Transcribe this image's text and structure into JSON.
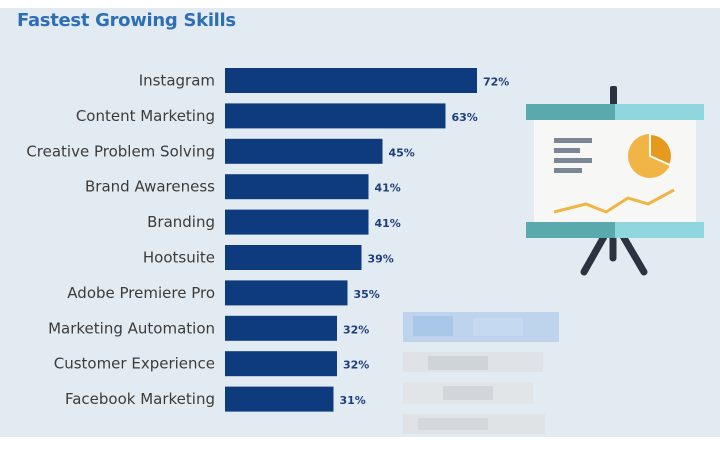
{
  "title": "Fastest Growing Skills",
  "colors": {
    "bar": "#0d3b7e",
    "panel_bg": "#e3ebf2",
    "title": "#2e6eb5",
    "value_label": "#1e3f7d"
  },
  "icons": [
    "presentation-easel-icon",
    "blurred-watermark"
  ],
  "chart_data": {
    "type": "bar",
    "orientation": "horizontal",
    "title": "Fastest Growing Skills",
    "xlabel": "",
    "ylabel": "",
    "unit": "%",
    "grid": false,
    "legend": "none",
    "xlim": [
      0,
      100
    ],
    "categories": [
      "Instagram",
      "Content Marketing",
      "Creative Problem Solving",
      "Brand Awareness",
      "Branding",
      "Hootsuite",
      "Adobe Premiere Pro",
      "Marketing Automation",
      "Customer Experience",
      "Facebook Marketing"
    ],
    "values": [
      72,
      63,
      45,
      41,
      41,
      39,
      35,
      32,
      32,
      31
    ],
    "value_labels": [
      "72%",
      "63%",
      "45%",
      "41%",
      "41%",
      "39%",
      "35%",
      "32%",
      "32%",
      "31%"
    ]
  }
}
